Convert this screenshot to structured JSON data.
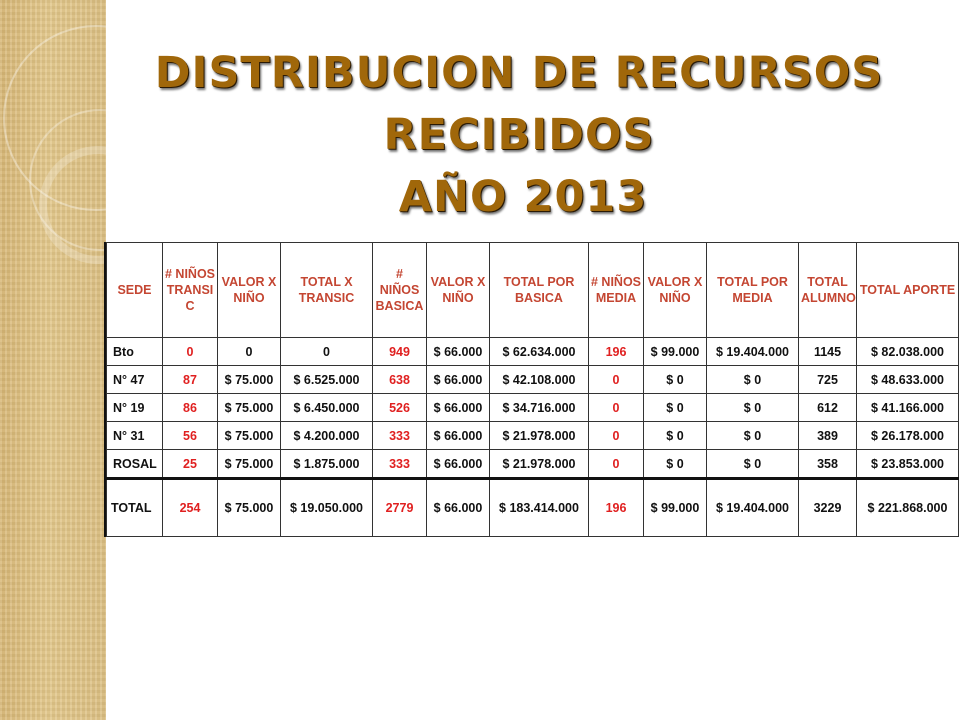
{
  "title": {
    "line1": "DISTRIBUCION DE RECURSOS",
    "line2": "RECIBIDOS",
    "line3": "AÑO 2013"
  },
  "colors": {
    "title": "#a0670a",
    "header_text": "#c44632",
    "highlight_number": "#e02020",
    "side_band": "#dcc084"
  },
  "table": {
    "headers": [
      "SEDE",
      "# NIÑOS TRANSI C",
      "VALOR X NIÑO",
      "TOTAL X TRANSIC",
      "# NIÑOS BASICA",
      "VALOR X NIÑO",
      "TOTAL POR BASICA",
      "# NIÑOS MEDIA",
      "VALOR X NIÑO",
      "TOTAL POR MEDIA",
      "TOTAL ALUMNO",
      "TOTAL APORTE"
    ],
    "rows": [
      [
        "Bto",
        "0",
        "0",
        "0",
        "949",
        "$ 66.000",
        "$ 62.634.000",
        "196",
        "$ 99.000",
        "$ 19.404.000",
        "1145",
        "$ 82.038.000"
      ],
      [
        "N° 47",
        "87",
        "$ 75.000",
        "$ 6.525.000",
        "638",
        "$ 66.000",
        "$ 42.108.000",
        "0",
        "$ 0",
        "$ 0",
        "725",
        "$ 48.633.000"
      ],
      [
        "N° 19",
        "86",
        "$ 75.000",
        "$ 6.450.000",
        "526",
        "$ 66.000",
        "$ 34.716.000",
        "0",
        "$ 0",
        "$ 0",
        "612",
        "$ 41.166.000"
      ],
      [
        "N° 31",
        "56",
        "$ 75.000",
        "$ 4.200.000",
        "333",
        "$ 66.000",
        "$ 21.978.000",
        "0",
        "$ 0",
        "$ 0",
        "389",
        "$ 26.178.000"
      ],
      [
        "ROSAL",
        "25",
        "$ 75.000",
        "$ 1.875.000",
        "333",
        "$ 66.000",
        "$ 21.978.000",
        "0",
        "$ 0",
        "$ 0",
        "358",
        "$ 23.853.000"
      ]
    ],
    "total": [
      "TOTAL",
      "254",
      "$ 75.000",
      "$ 19.050.000",
      "2779",
      "$ 66.000",
      "$ 183.414.000",
      "196",
      "$ 99.000",
      "$ 19.404.000",
      "3229",
      "$ 221.868.000"
    ]
  }
}
